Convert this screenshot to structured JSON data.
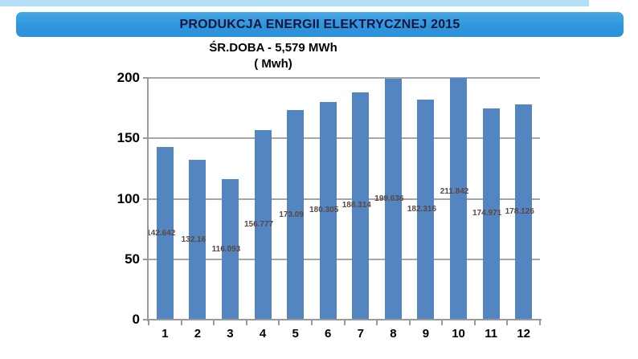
{
  "header": {
    "banner_title": "PRODUKCJA ENERGII ELEKTRYCZNEJ 2015",
    "subtitle_line1": "ŚR.DOBA - 5,579 MWh",
    "subtitle_line2": "( Mwh)"
  },
  "chart_data": {
    "type": "bar",
    "title": "PRODUKCJA ENERGII ELEKTRYCZNEJ 2015",
    "subtitle": "ŚR.DOBA - 5,579 MWh",
    "units_line": "( Mwh)",
    "categories": [
      "1",
      "2",
      "3",
      "4",
      "5",
      "6",
      "7",
      "8",
      "9",
      "10",
      "11",
      "12"
    ],
    "values": [
      142.642,
      132.16,
      116.093,
      156.777,
      173.09,
      180.305,
      188.314,
      199.636,
      182.316,
      211.842,
      174.971,
      178.126
    ],
    "data_labels": [
      "142.642",
      "132.16",
      "116.093",
      "156.777",
      "173.09",
      "180.305",
      "188.314",
      "199.636",
      "182.316",
      "211.842",
      "174.971",
      "178.126"
    ],
    "xlabel": "",
    "ylabel": "",
    "ylim": [
      0,
      200
    ],
    "yticks": [
      0,
      50,
      100,
      150,
      200
    ],
    "grid": true,
    "legend": false,
    "data_label_position": "center-of-bar",
    "clipping_note": "bar for month 10 (211.842) exceeds y-axis max 200 and is clipped at the top gridline"
  },
  "colors": {
    "bar": "#5385c1",
    "gridline": "#a6a6a6",
    "axis": "#9a9a9a",
    "data_label": "#5b4742",
    "banner_top": "#47a7e6",
    "banner_bottom": "#2a90d9",
    "banner_text": "#15153d",
    "top_strip": "#b3def6",
    "background": "#ffffff"
  }
}
